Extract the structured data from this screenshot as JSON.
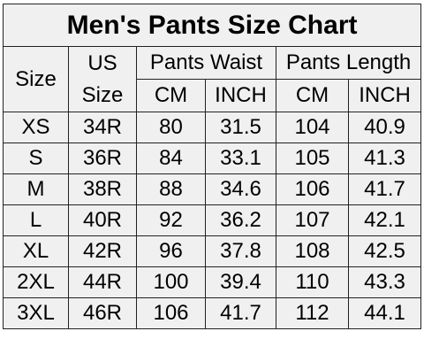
{
  "chart": {
    "title": "Men's Pants Size Chart",
    "headers": {
      "size": "Size",
      "us_size_line1": "US",
      "us_size_line2": "Size",
      "pants_waist": "Pants Waist",
      "pants_length": "Pants Length",
      "waist_cm": "CM",
      "waist_inch": "INCH",
      "length_cm": "CM",
      "length_inch": "INCH"
    },
    "rows": [
      {
        "size": "XS",
        "us": "34R",
        "waist_cm": "80",
        "waist_inch": "31.5",
        "length_cm": "104",
        "length_inch": "40.9"
      },
      {
        "size": "S",
        "us": "36R",
        "waist_cm": "84",
        "waist_inch": "33.1",
        "length_cm": "105",
        "length_inch": "41.3"
      },
      {
        "size": "M",
        "us": "38R",
        "waist_cm": "88",
        "waist_inch": "34.6",
        "length_cm": "106",
        "length_inch": "41.7"
      },
      {
        "size": "L",
        "us": "40R",
        "waist_cm": "92",
        "waist_inch": "36.2",
        "length_cm": "107",
        "length_inch": "42.1"
      },
      {
        "size": "XL",
        "us": "42R",
        "waist_cm": "96",
        "waist_inch": "37.8",
        "length_cm": "108",
        "length_inch": "42.5"
      },
      {
        "size": "2XL",
        "us": "44R",
        "waist_cm": "100",
        "waist_inch": "39.4",
        "length_cm": "110",
        "length_inch": "43.3"
      },
      {
        "size": "3XL",
        "us": "46R",
        "waist_cm": "106",
        "waist_inch": "41.7",
        "length_cm": "112",
        "length_inch": "44.1"
      }
    ]
  }
}
